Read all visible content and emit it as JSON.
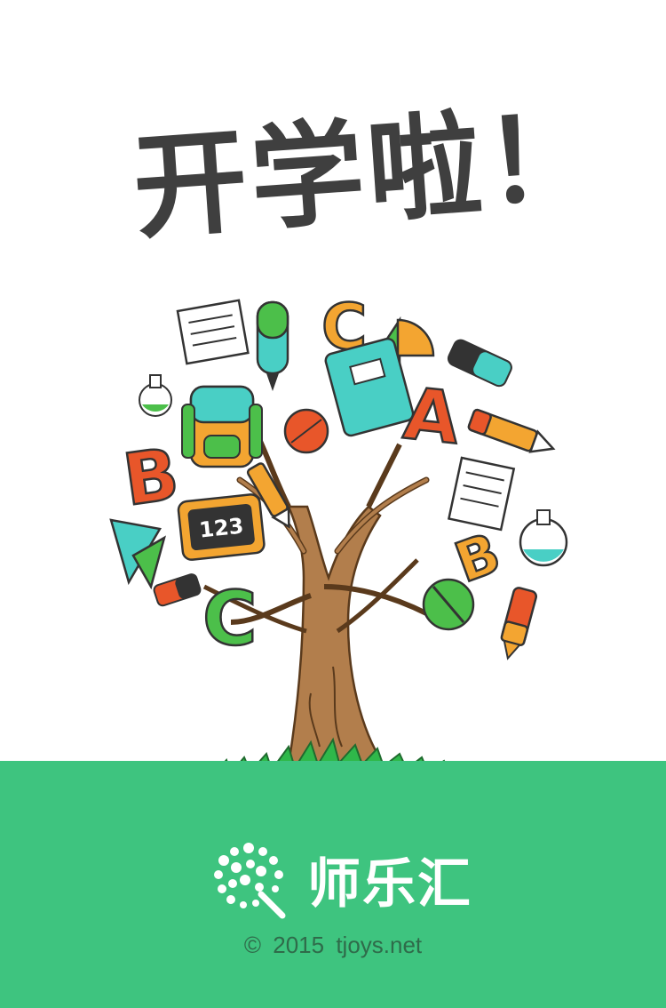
{
  "headline": {
    "text": "开学啦！"
  },
  "brand": {
    "name": "师乐汇",
    "logo_icon": "dotted-flower-logo-icon"
  },
  "copyright": {
    "symbol": "©",
    "year": "2015",
    "site": "tjoys.net"
  },
  "colors": {
    "footer_bg": "#3ec47f",
    "headline": "#3f3f3f",
    "grass": "#2fb84a",
    "trunk": "#9b6b3e"
  },
  "illustration": {
    "letter_b1": "B",
    "letter_a": "A",
    "letter_b2": "B",
    "letter_c1": "C",
    "letter_c2": "C",
    "board_text": "123"
  }
}
